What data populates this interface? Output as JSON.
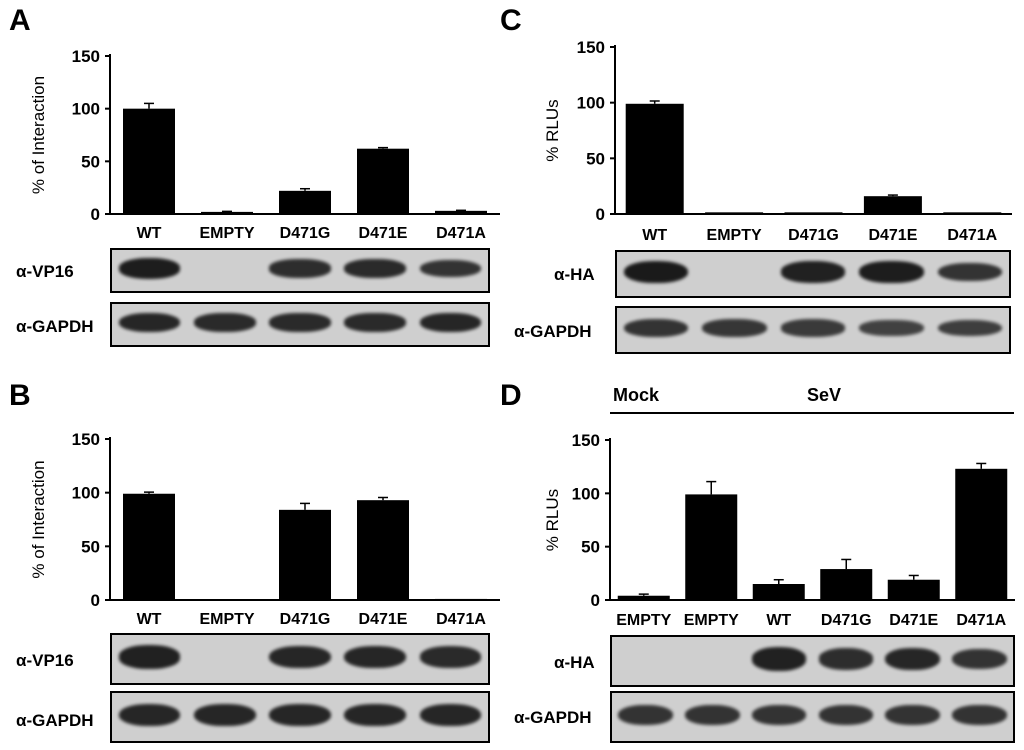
{
  "panels": [
    {
      "id": "A",
      "label": "A",
      "chart": {
        "ylabel": "% of Interaction",
        "yticks": [
          "0",
          "50",
          "100",
          "150"
        ]
      },
      "blots": [
        {
          "label": "α-VP16",
          "bands": [
            0.95,
            0,
            0.75,
            0.8,
            0.7
          ]
        },
        {
          "label": "α-GAPDH",
          "bands": [
            0.85,
            0.8,
            0.8,
            0.8,
            0.85
          ]
        }
      ]
    },
    {
      "id": "B",
      "label": "B",
      "chart": {
        "ylabel": "% of Interaction",
        "yticks": [
          "0",
          "50",
          "100",
          "150"
        ]
      },
      "blots": [
        {
          "label": "α-VP16",
          "bands": [
            0.9,
            0,
            0.85,
            0.85,
            0.8
          ]
        },
        {
          "label": "α-GAPDH",
          "bands": [
            0.85,
            0.85,
            0.85,
            0.85,
            0.85
          ]
        }
      ]
    },
    {
      "id": "C",
      "label": "C",
      "chart": {
        "ylabel": "% RLUs",
        "yticks": [
          "0",
          "50",
          "100",
          "150"
        ]
      },
      "blots": [
        {
          "label": "α-HA",
          "bands": [
            1.0,
            0,
            0.9,
            0.95,
            0.7
          ]
        },
        {
          "label": "α-GAPDH",
          "bands": [
            0.7,
            0.65,
            0.6,
            0.5,
            0.55
          ]
        }
      ]
    },
    {
      "id": "D",
      "label": "D",
      "groups": [
        {
          "label": "Mock"
        },
        {
          "label": "SeV"
        }
      ],
      "chart": {
        "ylabel": "% RLUs",
        "yticks": [
          "0",
          "50",
          "100",
          "150"
        ]
      },
      "blots": [
        {
          "label": "α-HA",
          "bands": [
            0,
            0,
            0.9,
            0.75,
            0.85,
            0.7
          ]
        },
        {
          "label": "α-GAPDH",
          "bands": [
            0.7,
            0.7,
            0.7,
            0.7,
            0.7,
            0.7
          ]
        }
      ]
    }
  ],
  "chart_data": [
    {
      "type": "bar",
      "panel": "A",
      "categories": [
        "WT",
        "EMPTY",
        "D471G",
        "D471E",
        "D471A"
      ],
      "values": [
        100,
        2,
        22,
        62,
        3
      ],
      "errors": [
        5,
        0.5,
        2,
        1,
        0.5
      ],
      "ylabel": "% of Interaction",
      "ylim": [
        0,
        150
      ],
      "color": "#000000"
    },
    {
      "type": "bar",
      "panel": "B",
      "categories": [
        "WT",
        "EMPTY",
        "D471G",
        "D471E",
        "D471A"
      ],
      "values": [
        99,
        0,
        84,
        93,
        1
      ],
      "errors": [
        1.5,
        0,
        6,
        2.5,
        0
      ],
      "ylabel": "% of Interaction",
      "ylim": [
        0,
        150
      ],
      "color": "#000000"
    },
    {
      "type": "bar",
      "panel": "C",
      "categories": [
        "WT",
        "EMPTY",
        "D471G",
        "D471E",
        "D471A"
      ],
      "values": [
        99,
        1.5,
        1.5,
        16,
        1.5
      ],
      "errors": [
        2.5,
        0.3,
        0.3,
        1,
        0.3
      ],
      "ylabel": "% RLUs",
      "ylim": [
        0,
        150
      ],
      "color": "#000000"
    },
    {
      "type": "bar",
      "panel": "D",
      "categories": [
        "EMPTY",
        "EMPTY",
        "WT",
        "D471G",
        "D471E",
        "D471A"
      ],
      "values": [
        4,
        99,
        15,
        29,
        19,
        123
      ],
      "errors": [
        1.5,
        12,
        4,
        9,
        4,
        5
      ],
      "ylabel": "% RLUs",
      "ylim": [
        0,
        150
      ],
      "color": "#000000"
    }
  ]
}
